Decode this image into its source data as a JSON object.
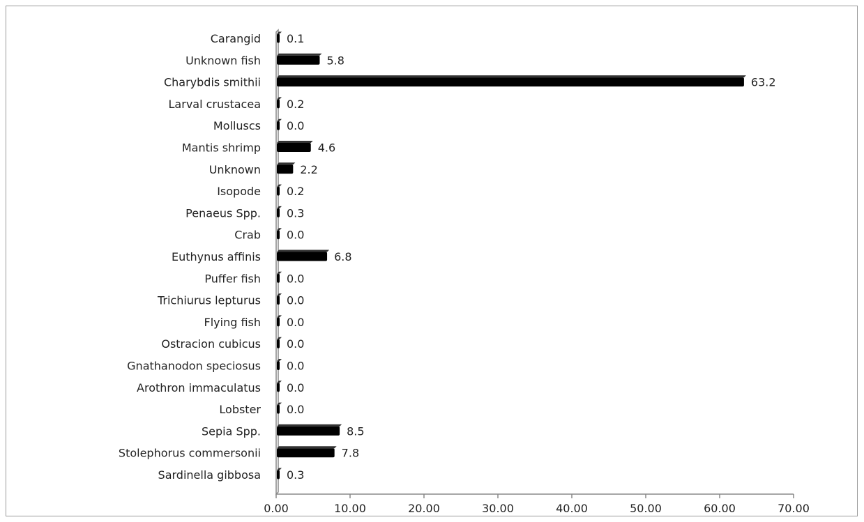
{
  "chart_data": {
    "type": "bar",
    "orientation": "horizontal",
    "categories": [
      "Carangid",
      "Unknown fish",
      "Charybdis smithii",
      "Larval crustacea",
      "Molluscs",
      "Mantis shrimp",
      "Unknown",
      "Isopode",
      "Penaeus Spp.",
      "Crab",
      "Euthynus affinis",
      "Puffer fish",
      "Trichiurus lepturus",
      "Flying fish",
      "Ostracion cubicus",
      "Gnathanodon speciosus",
      "Arothron immaculatus",
      "Lobster",
      "Sepia Spp.",
      "Stolephorus commersonii",
      "Sardinella gibbosa"
    ],
    "values": [
      0.1,
      5.8,
      63.2,
      0.2,
      0.0,
      4.6,
      2.2,
      0.2,
      0.3,
      0.0,
      6.8,
      0.0,
      0.0,
      0.0,
      0.0,
      0.0,
      0.0,
      0.0,
      8.5,
      7.8,
      0.3
    ],
    "value_labels": [
      "0.1",
      "5.8",
      "63.2",
      "0.2",
      "0.0",
      "4.6",
      "2.2",
      "0.2",
      "0.3",
      "0.0",
      "6.8",
      "0.0",
      "0.0",
      "0.0",
      "0.0",
      "0.0",
      "0.0",
      "0.0",
      "8.5",
      "7.8",
      "0.3"
    ],
    "xticks": [
      0,
      10,
      20,
      30,
      40,
      50,
      60,
      70
    ],
    "xtick_labels": [
      "0.00",
      "10.00",
      "20.00",
      "30.00",
      "40.00",
      "50.00",
      "60.00",
      "70.00"
    ],
    "xlim": [
      0,
      70
    ],
    "title": "",
    "xlabel": "",
    "ylabel": "",
    "grid": false,
    "legend": "none",
    "bar_color": "#000000",
    "axis_color": "#888888"
  }
}
